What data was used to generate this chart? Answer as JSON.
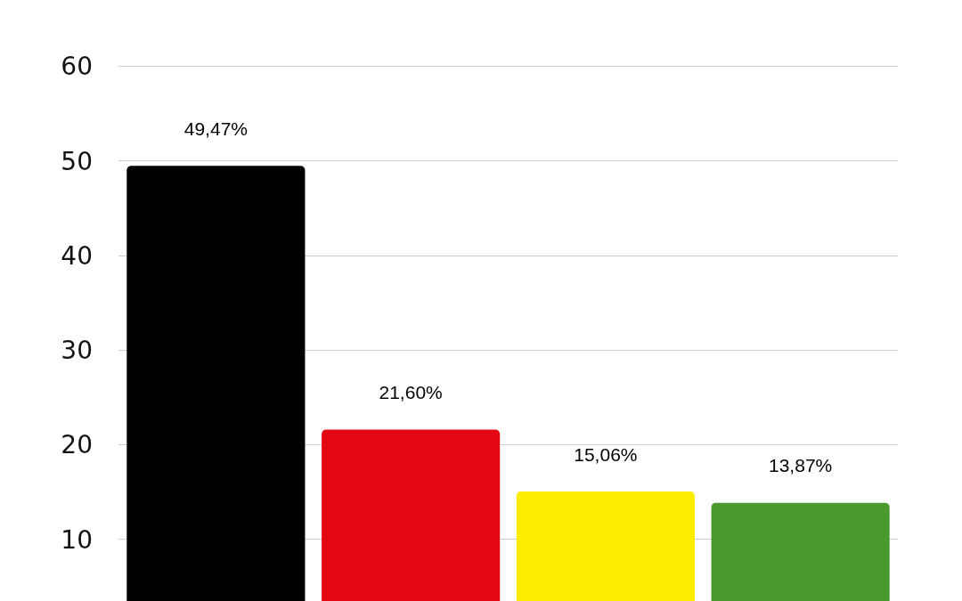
{
  "chart_data": {
    "type": "bar",
    "categories": [
      null,
      null,
      null,
      null
    ],
    "values": [
      49.47,
      21.6,
      15.06,
      13.87
    ],
    "colors": [
      "#000000",
      "#e30613",
      "#ffed00",
      "#4a992f"
    ],
    "value_labels": [
      "49,47%",
      "21,60%",
      "15,06%",
      "13,87%"
    ],
    "ylim": [
      3.5,
      67
    ],
    "yticks": [
      10,
      20,
      30,
      40,
      50,
      60
    ],
    "grid": "y",
    "legend": false
  }
}
